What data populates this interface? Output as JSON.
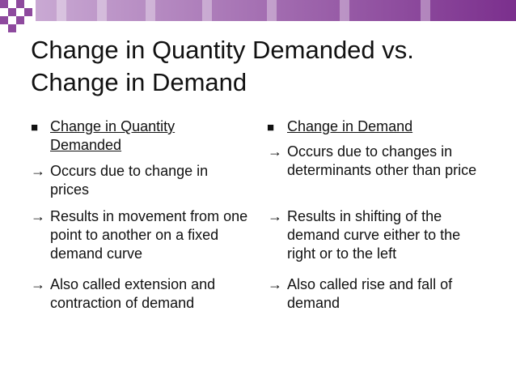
{
  "title": "Change in Quantity Demanded vs. Change in Demand",
  "left_column": {
    "heading": "Change in Quantity Demanded",
    "points": [
      "Occurs due to change in prices",
      "Results in movement from one point to another on a fixed demand curve",
      "Also called extension and contraction of demand"
    ]
  },
  "right_column": {
    "heading": "Change in Demand",
    "points": [
      "Occurs due to changes in determinants other than price",
      "Results in shifting of the demand curve either to the right or to the left",
      "Also called rise and fall of demand"
    ]
  }
}
